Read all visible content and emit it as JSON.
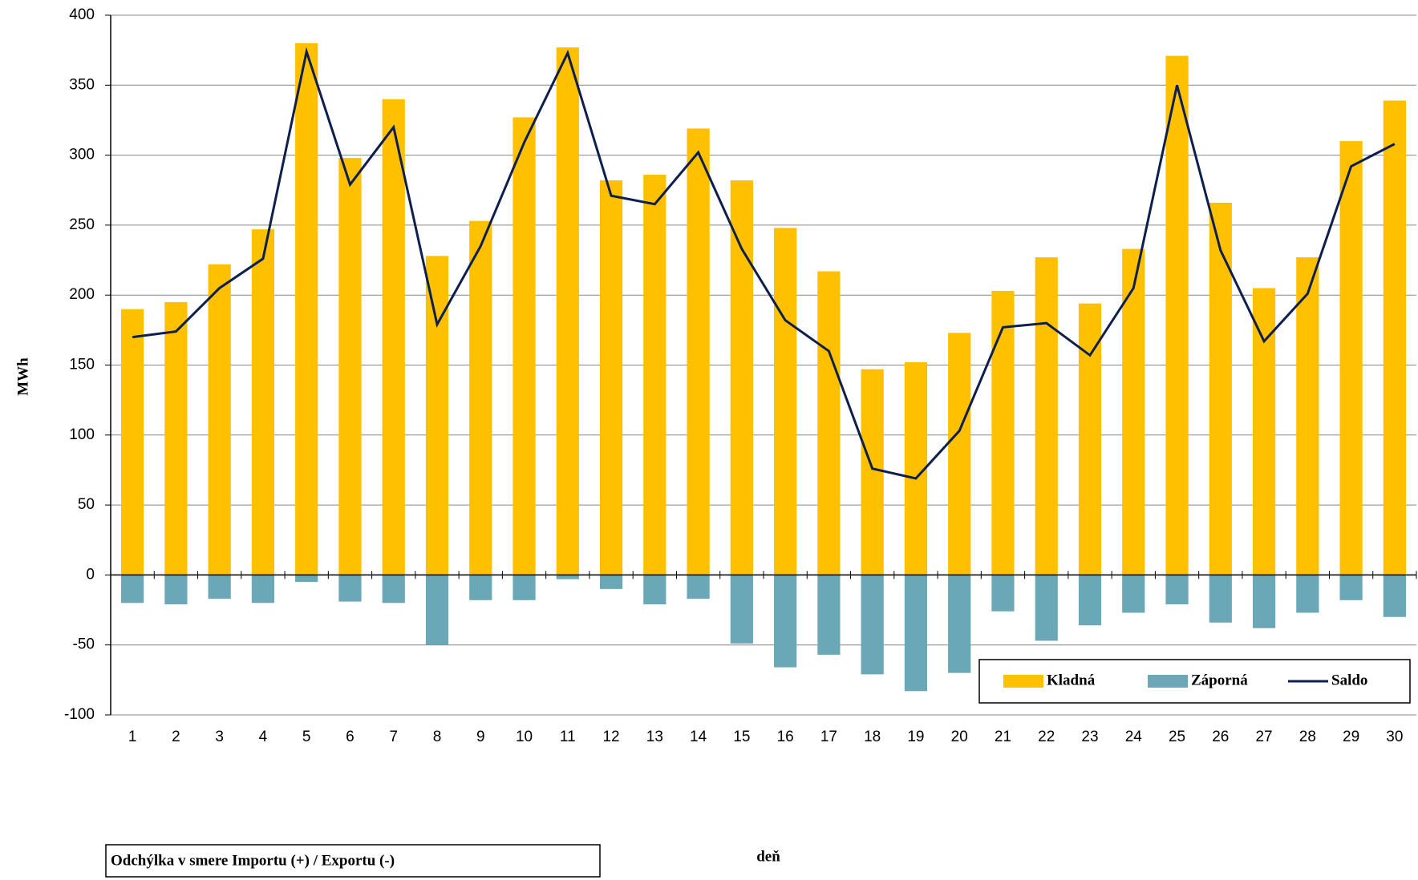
{
  "chart_data": {
    "type": "bar",
    "xlabel": "deň",
    "ylabel": "MWh",
    "note": "Odchýlka v smere Importu (+) / Exportu (-)",
    "categories": [
      "1",
      "2",
      "3",
      "4",
      "5",
      "6",
      "7",
      "8",
      "9",
      "10",
      "11",
      "12",
      "13",
      "14",
      "15",
      "16",
      "17",
      "18",
      "19",
      "20",
      "21",
      "22",
      "23",
      "24",
      "25",
      "26",
      "27",
      "28",
      "29",
      "30"
    ],
    "series": [
      {
        "name": "Kladná",
        "color": "#ffc000",
        "type": "bar",
        "values": [
          190,
          195,
          222,
          247,
          380,
          298,
          340,
          228,
          253,
          327,
          377,
          282,
          286,
          319,
          282,
          248,
          217,
          147,
          152,
          173,
          203,
          227,
          194,
          233,
          371,
          266,
          205,
          227,
          310,
          339
        ]
      },
      {
        "name": "Záporná",
        "color": "#6aa8b8",
        "type": "bar",
        "values": [
          -20,
          -21,
          -17,
          -20,
          -5,
          -19,
          -20,
          -50,
          -18,
          -18,
          -3,
          -10,
          -21,
          -17,
          -49,
          -66,
          -57,
          -71,
          -83,
          -70,
          -26,
          -47,
          -36,
          -27,
          -21,
          -34,
          -38,
          -27,
          -18,
          -30
        ]
      },
      {
        "name": "Saldo",
        "color": "#0d1f4f",
        "type": "line",
        "values": [
          170,
          174,
          205,
          226,
          374,
          279,
          320,
          179,
          235,
          309,
          373,
          271,
          265,
          302,
          233,
          182,
          160,
          76,
          69,
          103,
          177,
          180,
          157,
          205,
          350,
          232,
          167,
          201,
          292,
          308
        ]
      }
    ],
    "ylim": [
      -100,
      400
    ],
    "yticks": [
      -100,
      -50,
      0,
      50,
      100,
      150,
      200,
      250,
      300,
      350,
      400
    ],
    "grid": true
  }
}
